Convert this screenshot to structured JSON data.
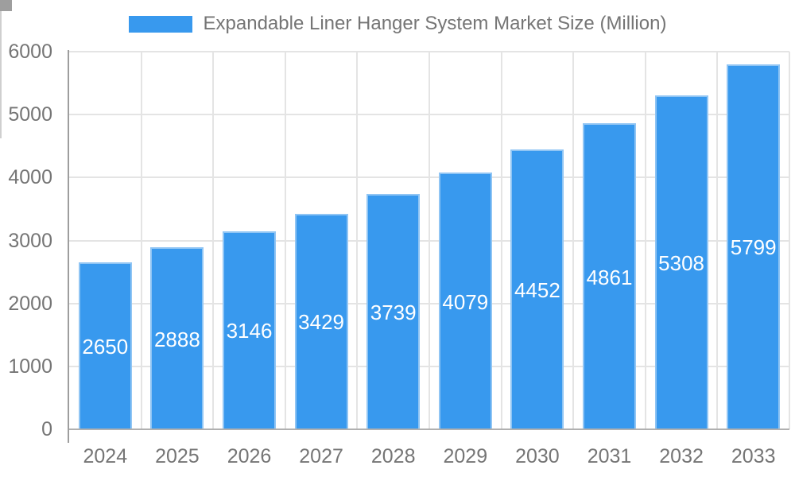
{
  "chart_data": {
    "type": "bar",
    "legend_label": "Expandable Liner Hanger System Market Size (Million)",
    "legend_position": "top",
    "categories": [
      "2024",
      "2025",
      "2026",
      "2027",
      "2028",
      "2029",
      "2030",
      "2031",
      "2032",
      "2033"
    ],
    "values": [
      2650,
      2888,
      3146,
      3429,
      3739,
      4079,
      4452,
      4861,
      5308,
      5799
    ],
    "bar_value_labels": [
      "2650",
      "2888",
      "3146",
      "3429",
      "3739",
      "4079",
      "4452",
      "4861",
      "5308",
      "5799"
    ],
    "xlabel": "",
    "ylabel": "",
    "ylim": [
      0,
      6000
    ],
    "yticks": [
      0,
      1000,
      2000,
      3000,
      4000,
      5000,
      6000
    ],
    "grid": true,
    "value_labels_inside_bars": true,
    "colors": {
      "bar": "#3899ee",
      "bar_border": "#90c5f4",
      "bar_label": "#ffffff",
      "axis_text": "#757575",
      "gridline": "#e4e4e4",
      "axis_line": "#9e9e9e",
      "baseline": "#b0b0b0",
      "background": "#ffffff"
    }
  }
}
